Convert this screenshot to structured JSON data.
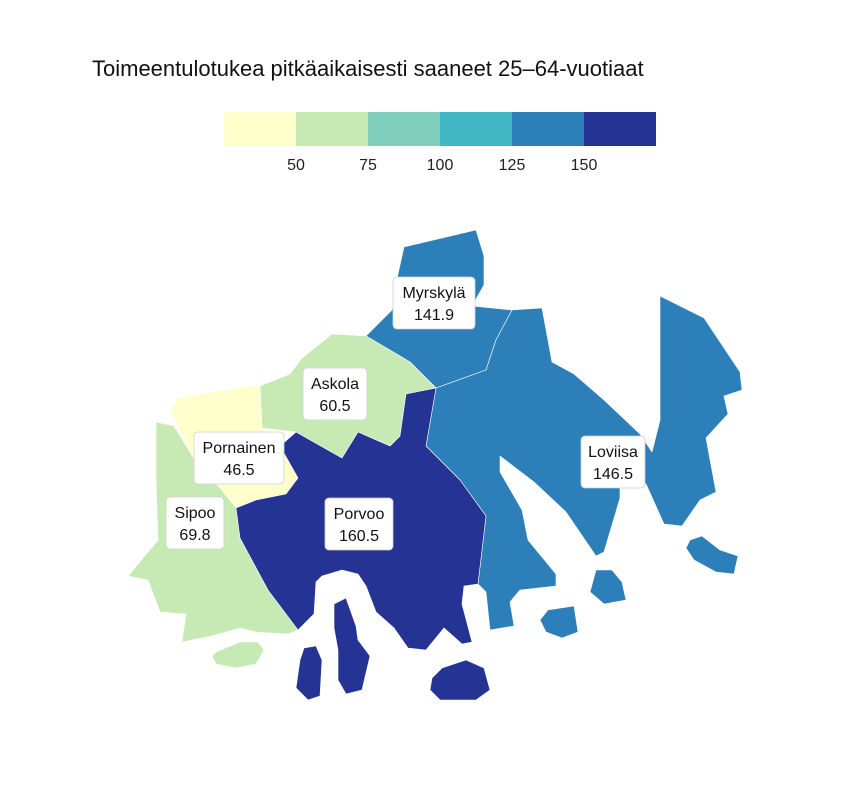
{
  "title": "Toimeentulotukea pitkäaikaisesti saaneet 25–64-vuotiaat",
  "legend": {
    "colors": [
      "#ffffcc",
      "#c7e9b4",
      "#7fcdbb",
      "#41b6c4",
      "#2c7fb8",
      "#253494"
    ],
    "ticks": [
      "50",
      "75",
      "100",
      "125",
      "150"
    ]
  },
  "regions": [
    {
      "id": "myrskyla",
      "name": "Myrskylä",
      "value": "141.9",
      "color": "#2c7fb8"
    },
    {
      "id": "askola",
      "name": "Askola",
      "value": "60.5",
      "color": "#c7e9b4"
    },
    {
      "id": "pornainen",
      "name": "Pornainen",
      "value": "46.5",
      "color": "#ffffcc"
    },
    {
      "id": "loviisa",
      "name": "Loviisa",
      "value": "146.5",
      "color": "#2c7fb8"
    },
    {
      "id": "sipoo",
      "name": "Sipoo",
      "value": "69.8",
      "color": "#c7e9b4"
    },
    {
      "id": "porvoo",
      "name": "Porvoo",
      "value": "160.5",
      "color": "#253494"
    }
  ]
}
